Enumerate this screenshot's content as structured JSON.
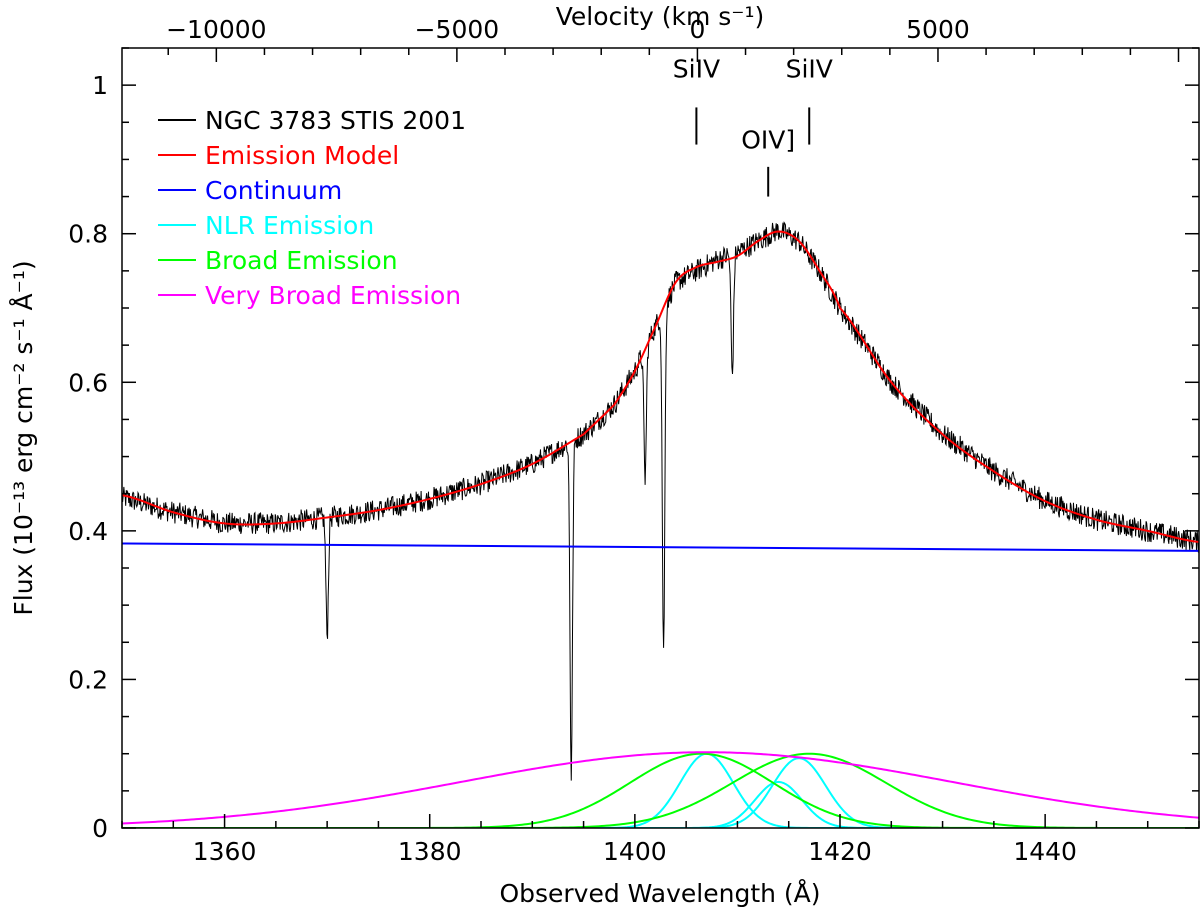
{
  "chart_data": {
    "type": "line",
    "title": "",
    "xlabel": "Observed Wavelength (Å)",
    "x2label": "Velocity (km s⁻¹)",
    "ylabel": "Flux (10⁻¹³ erg cm⁻² s⁻¹ Å⁻¹)",
    "xlim": [
      1350,
      1455
    ],
    "ylim": [
      0,
      1.05
    ],
    "x_ticks": [
      "1360",
      "1380",
      "1400",
      "1420",
      "1440"
    ],
    "x_tick_values": [
      1360,
      1380,
      1400,
      1420,
      1440
    ],
    "y_ticks": [
      "0",
      "0.2",
      "0.4",
      "0.6",
      "0.8",
      "1"
    ],
    "y_tick_values": [
      0,
      0.2,
      0.4,
      0.6,
      0.8,
      1.0
    ],
    "x2_ticks": [
      "−10000",
      "−5000",
      "0",
      "5000"
    ],
    "x2_tick_values": [
      -10000,
      -5000,
      0,
      5000
    ],
    "x2_reference_wavelength": 1406.1,
    "legend_position": "top-left",
    "legend": [
      {
        "label": "NGC 3783 STIS 2001",
        "color": "#000000"
      },
      {
        "label": "Emission Model",
        "color": "#ff0000"
      },
      {
        "label": "Continuum",
        "color": "#0000ff"
      },
      {
        "label": "NLR Emission",
        "color": "#00ffff"
      },
      {
        "label": "Broad Emission",
        "color": "#00ff00"
      },
      {
        "label": "Very Broad Emission",
        "color": "#ff00ff"
      }
    ],
    "line_labels": [
      {
        "text": "SiIV",
        "wavelength": 1406.0,
        "tick_top_y": 0.97,
        "tick_bottom_y": 0.92,
        "label_y": 1.01
      },
      {
        "text": "SiIV",
        "wavelength": 1417.0,
        "tick_top_y": 0.97,
        "tick_bottom_y": 0.92,
        "label_y": 1.01
      },
      {
        "text": "OIV]",
        "wavelength": 1413.0,
        "tick_top_y": 0.89,
        "tick_bottom_y": 0.85,
        "label_y": 0.915
      }
    ],
    "series": [
      {
        "name": "NGC 3783 STIS 2001",
        "color": "#000000",
        "x": [
          1350,
          1355,
          1360,
          1365,
          1370,
          1375,
          1380,
          1385,
          1390,
          1395,
          1398,
          1400,
          1402,
          1404,
          1406,
          1408,
          1410,
          1412,
          1414,
          1416,
          1418,
          1420,
          1425,
          1430,
          1435,
          1440,
          1445,
          1450,
          1455
        ],
        "y": [
          0.445,
          0.425,
          0.41,
          0.41,
          0.418,
          0.428,
          0.443,
          0.463,
          0.49,
          0.53,
          0.57,
          0.615,
          0.675,
          0.735,
          0.75,
          0.765,
          0.775,
          0.79,
          0.805,
          0.79,
          0.75,
          0.7,
          0.6,
          0.53,
          0.48,
          0.44,
          0.415,
          0.4,
          0.385
        ],
        "absorption_lines": [
          {
            "wavelength": 1370.0,
            "depth_to": 0.26
          },
          {
            "wavelength": 1393.8,
            "depth_to": 0.07
          },
          {
            "wavelength": 1401.0,
            "depth_to": 0.47
          },
          {
            "wavelength": 1402.8,
            "depth_to": 0.235
          },
          {
            "wavelength": 1409.5,
            "depth_to": 0.61
          }
        ]
      },
      {
        "name": "Emission Model",
        "color": "#ff0000",
        "x": [
          1350,
          1355,
          1360,
          1365,
          1370,
          1375,
          1380,
          1385,
          1390,
          1395,
          1398,
          1400,
          1402,
          1404,
          1406,
          1408,
          1410,
          1412,
          1414,
          1416,
          1418,
          1420,
          1425,
          1430,
          1435,
          1440,
          1445,
          1450,
          1455
        ],
        "y": [
          0.448,
          0.425,
          0.41,
          0.41,
          0.418,
          0.428,
          0.443,
          0.463,
          0.49,
          0.53,
          0.57,
          0.615,
          0.675,
          0.735,
          0.755,
          0.762,
          0.77,
          0.79,
          0.803,
          0.79,
          0.75,
          0.7,
          0.6,
          0.53,
          0.48,
          0.44,
          0.415,
          0.4,
          0.385
        ]
      },
      {
        "name": "Continuum",
        "color": "#0000ff",
        "x": [
          1350,
          1455
        ],
        "y": [
          0.383,
          0.373
        ]
      },
      {
        "name": "NLR Emission",
        "color": "#00ffff",
        "gaussians": [
          {
            "center": 1407.0,
            "amplitude": 0.1,
            "sigma": 2.6
          },
          {
            "center": 1414.0,
            "amplitude": 0.062,
            "sigma": 2.3
          },
          {
            "center": 1416.0,
            "amplitude": 0.094,
            "sigma": 2.6
          }
        ]
      },
      {
        "name": "Broad Emission",
        "color": "#00ff00",
        "gaussians": [
          {
            "center": 1406.5,
            "amplitude": 0.1,
            "sigma": 7.0
          },
          {
            "center": 1417.0,
            "amplitude": 0.1,
            "sigma": 7.5
          }
        ]
      },
      {
        "name": "Very Broad Emission",
        "color": "#ff00ff",
        "gaussians": [
          {
            "center": 1407.0,
            "amplitude": 0.102,
            "sigma": 24.0
          }
        ]
      }
    ]
  }
}
